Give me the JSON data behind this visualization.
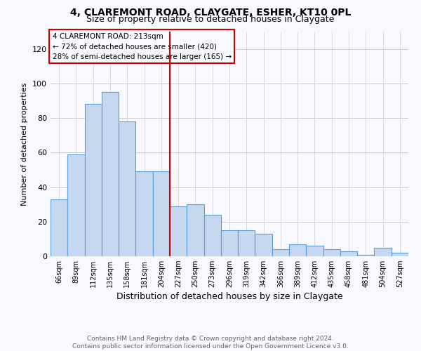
{
  "title": "4, CLAREMONT ROAD, CLAYGATE, ESHER, KT10 0PL",
  "subtitle": "Size of property relative to detached houses in Claygate",
  "xlabel": "Distribution of detached houses by size in Claygate",
  "ylabel": "Number of detached properties",
  "footer1": "Contains HM Land Registry data © Crown copyright and database right 2024.",
  "footer2": "Contains public sector information licensed under the Open Government Licence v3.0.",
  "annotation_line1": "4 CLAREMONT ROAD: 213sqm",
  "annotation_line2": "← 72% of detached houses are smaller (420)",
  "annotation_line3": "28% of semi-detached houses are larger (165) →",
  "bin_labels": [
    "66sqm",
    "89sqm",
    "112sqm",
    "135sqm",
    "158sqm",
    "181sqm",
    "204sqm",
    "227sqm",
    "250sqm",
    "273sqm",
    "296sqm",
    "319sqm",
    "342sqm",
    "366sqm",
    "389sqm",
    "412sqm",
    "435sqm",
    "458sqm",
    "481sqm",
    "504sqm",
    "527sqm"
  ],
  "bar_heights": [
    33,
    59,
    88,
    95,
    78,
    49,
    49,
    29,
    30,
    24,
    15,
    15,
    13,
    4,
    7,
    6,
    4,
    3,
    1,
    5,
    2
  ],
  "bar_color": "#c5d8f0",
  "bar_edge_color": "#5a9fd4",
  "vline_color": "#cc0000",
  "vline_position": 6.5,
  "ylim": [
    0,
    130
  ],
  "yticks": [
    0,
    20,
    40,
    60,
    80,
    100,
    120
  ],
  "background_color": "#f8f8ff",
  "annotation_box_edge": "#cc0000",
  "title_fontsize": 10,
  "subtitle_fontsize": 9,
  "tick_fontsize": 7,
  "ylabel_fontsize": 8,
  "xlabel_fontsize": 9,
  "annotation_fontsize": 7.5,
  "footer_fontsize": 6.5
}
